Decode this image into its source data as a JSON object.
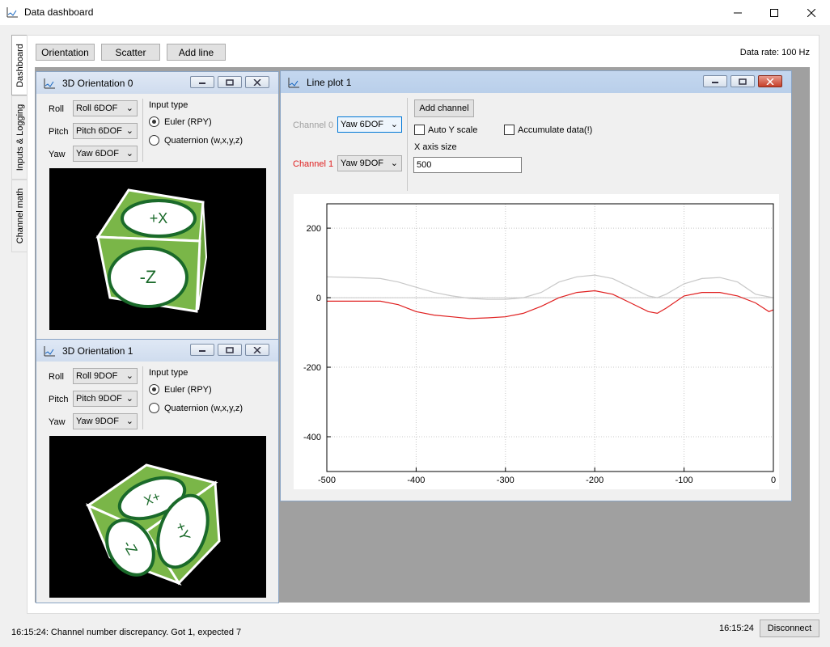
{
  "window": {
    "title": "Data dashboard",
    "min_icon": "minimize-icon",
    "max_icon": "maximize-icon",
    "close_icon": "close-icon"
  },
  "tabs": [
    {
      "label": "Dashboard",
      "active": true
    },
    {
      "label": "Inputs & Logging",
      "active": false
    },
    {
      "label": "Channel math",
      "active": false
    }
  ],
  "toolbar": {
    "orientation_label": "Orientation",
    "scatter_label": "Scatter",
    "add_line_label": "Add line"
  },
  "data_rate": "Data rate:  100 Hz",
  "orientation0": {
    "title": "3D Orientation 0",
    "roll_label": "Roll",
    "roll_value": "Roll 6DOF",
    "pitch_label": "Pitch",
    "pitch_value": "Pitch 6DOF",
    "yaw_label": "Yaw",
    "yaw_value": "Yaw 6DOF",
    "input_type_label": "Input type",
    "euler_label": "Euler (RPY)",
    "quaternion_label": "Quaternion (w,x,y,z)",
    "selected": "euler",
    "face_top": "+X",
    "face_front": "-Z"
  },
  "orientation1": {
    "title": "3D Orientation 1",
    "roll_label": "Roll",
    "roll_value": "Roll 9DOF",
    "pitch_label": "Pitch",
    "pitch_value": "Pitch 9DOF",
    "yaw_label": "Yaw",
    "yaw_value": "Yaw 9DOF",
    "input_type_label": "Input type",
    "euler_label": "Euler (RPY)",
    "quaternion_label": "Quaternion (w,x,y,z)",
    "selected": "euler",
    "face_top": "+X",
    "face_right": "+Y",
    "face_left": "-Z"
  },
  "lineplot": {
    "title": "Line plot 1",
    "channel0_label": "Channel 0",
    "channel0_value": "Yaw 6DOF",
    "channel1_label": "Channel 1",
    "channel1_value": "Yaw 9DOF",
    "add_channel_label": "Add channel",
    "auto_y_label": "Auto Y scale",
    "auto_y_checked": false,
    "accumulate_label": "Accumulate data(!)",
    "accumulate_checked": false,
    "x_axis_size_label": "X axis size",
    "x_axis_size_value": "500",
    "colors": {
      "channel0": "#c8c8c8",
      "channel1": "#e02020",
      "disabled_text": "#a0a0a0",
      "channel1_text": "#e02020"
    }
  },
  "chart_data": {
    "type": "line",
    "title": "",
    "xlabel": "",
    "ylabel": "",
    "xlim": [
      -500,
      0
    ],
    "ylim": [
      -500,
      270
    ],
    "xticks": [
      -500,
      -400,
      -300,
      -200,
      -100,
      0
    ],
    "yticks": [
      200,
      0,
      -200,
      -400
    ],
    "grid": true,
    "series": [
      {
        "name": "Channel 0",
        "color": "#c8c8c8",
        "x": [
          -500,
          -470,
          -440,
          -420,
          -400,
          -380,
          -360,
          -340,
          -320,
          -300,
          -280,
          -260,
          -240,
          -220,
          -200,
          -180,
          -160,
          -140,
          -130,
          -120,
          -100,
          -80,
          -60,
          -40,
          -20,
          0
        ],
        "y": [
          60,
          58,
          55,
          45,
          30,
          15,
          5,
          -2,
          -5,
          -5,
          0,
          15,
          45,
          60,
          65,
          55,
          30,
          5,
          0,
          10,
          40,
          55,
          58,
          45,
          10,
          0
        ]
      },
      {
        "name": "Channel 1",
        "color": "#e02020",
        "x": [
          -500,
          -470,
          -440,
          -420,
          -400,
          -380,
          -360,
          -340,
          -320,
          -300,
          -280,
          -260,
          -240,
          -220,
          -200,
          -180,
          -160,
          -140,
          -130,
          -120,
          -100,
          -80,
          -60,
          -40,
          -20,
          -5,
          0
        ],
        "y": [
          -10,
          -10,
          -10,
          -20,
          -40,
          -50,
          -55,
          -60,
          -58,
          -55,
          -45,
          -25,
          0,
          15,
          20,
          10,
          -15,
          -40,
          -45,
          -30,
          5,
          15,
          15,
          5,
          -15,
          -40,
          -35
        ]
      }
    ]
  },
  "status": {
    "message": "16:15:24: Channel number discrepancy. Got 1, expected 7",
    "time": "16:15:24",
    "disconnect_label": "Disconnect"
  }
}
